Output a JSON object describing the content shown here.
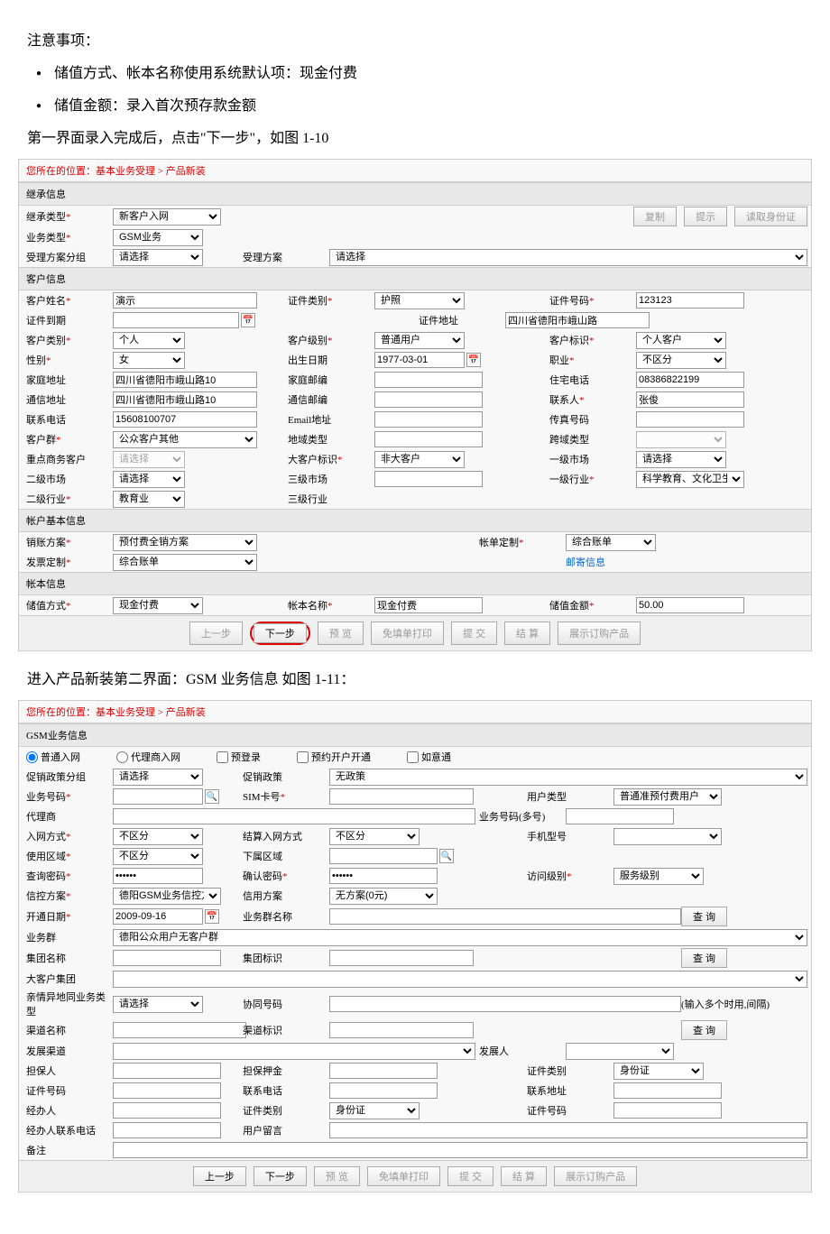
{
  "doc": {
    "t1": "注意事项：",
    "b1": "储值方式、帐本名称使用系统默认项：现金付费",
    "b2": "储值金额：录入首次预存款金额",
    "t2": "第一界面录入完成后，点击\"下一步\"，如图 1-10",
    "t3": "进入产品新装第二界面：GSM 业务信息 如图 1-11："
  },
  "crumb": "您所在的位置：基本业务受理 > 产品新装",
  "f1": {
    "sec1": "继承信息",
    "l_jclx": "继承类型",
    "v_jclx": "新客户入网",
    "btn_fz": "复制",
    "btn_ts": "提示",
    "btn_sfz": "读取身份证",
    "l_ywlx": "业务类型",
    "v_ywlx": "GSM业务",
    "l_slfafz": "受理方案分组",
    "v_slfafz": "请选择",
    "l_slfa": "受理方案",
    "v_slfa": "请选择",
    "sec2": "客户信息",
    "l_khxm": "客户姓名",
    "v_khxm": "演示",
    "l_zjlb": "证件类别",
    "v_zjlb": "护照",
    "l_zjhm": "证件号码",
    "v_zjhm": "123123",
    "l_zjdq": "证件到期",
    "l_zjdz": "证件地址",
    "v_zjdz": "四川省德阳市峨山路",
    "l_khlb": "客户类别",
    "v_khlb": "个人",
    "l_khjb": "客户级别",
    "v_khjb": "普通用户",
    "l_khbs": "客户标识",
    "v_khbs": "个人客户",
    "l_xb": "性别",
    "v_xb": "女",
    "l_csrq": "出生日期",
    "v_csrq": "1977-03-01",
    "l_zy": "职业",
    "v_zy": "不区分",
    "l_jtdz": "家庭地址",
    "v_jtdz": "四川省德阳市峨山路10",
    "l_jtyb": "家庭邮编",
    "l_zzdh": "住宅电话",
    "v_zzdh": "08386822199",
    "l_txdz": "通信地址",
    "v_txdz": "四川省德阳市峨山路10",
    "l_txyb": "通信邮编",
    "l_lxr": "联系人",
    "v_lxr": "张俊",
    "l_lxdh": "联系电话",
    "v_lxdh": "15608100707",
    "l_email": "Email地址",
    "l_czhm": "传真号码",
    "l_khq": "客户群",
    "v_khq": "公众客户其他",
    "l_dylx": "地域类型",
    "l_kylx": "跨域类型",
    "l_zdskh": "重点商务客户",
    "v_zdskh": "请选择",
    "l_dkhbs": "大客户标识",
    "v_dkhbs": "非大客户",
    "l_yjsc": "一级市场",
    "v_yjsc": "请选择",
    "l_ejsc": "二级市场",
    "v_ejsc": "请选择",
    "l_sjsc": "三级市场",
    "l_yjhy": "一级行业",
    "v_yjhy": "科学教育、文化卫生",
    "l_ejhy": "二级行业",
    "v_ejhy": "教育业",
    "l_sjhy": "三级行业",
    "sec3": "帐户基本信息",
    "l_xzfa": "销账方案",
    "v_xzfa": "预付费全销方案",
    "l_zddz": "帐单定制",
    "v_zddz": "综合账单",
    "l_fpdz": "发票定制",
    "v_fpdz": "综合账单",
    "l_yjxx": "邮寄信息",
    "sec4": "帐本信息",
    "l_czfs": "储值方式",
    "v_czfs": "现金付费",
    "l_zbmc": "帐本名称",
    "v_zbmc": "现金付费",
    "l_czje": "储值金额",
    "v_czje": "50.00",
    "btn_prev": "上一步",
    "btn_next": "下一步",
    "btn_yl": "预 览",
    "btn_mddy": "免填单打印",
    "btn_tj": "提 交",
    "btn_js": "结 算",
    "btn_zsdg": "展示订购产品"
  },
  "f2": {
    "sec1": "GSM业务信息",
    "r_ptrw": "普通入网",
    "r_dlrw": "代理商入网",
    "r_ydl": "预登录",
    "r_ykhkt": "预约开户开通",
    "r_ryt": "如意通",
    "l_cxzcfz": "促销政策分组",
    "v_cxzcfz": "请选择",
    "l_cxzc": "促销政策",
    "v_cxzc": "无政策",
    "l_ywhm": "业务号码",
    "l_simkh": "SIM卡号",
    "l_yhlx": "用户类型",
    "v_yhlx": "普通准预付费用户",
    "l_dls": "代理商",
    "l_ywhmdh": "业务号码(多号)",
    "l_rwfs": "入网方式",
    "v_rwfs": "不区分",
    "l_jsrwfs": "结算入网方式",
    "v_jsrwfs": "不区分",
    "l_sjxh": "手机型号",
    "l_syqy": "使用区域",
    "v_syqy": "不区分",
    "l_xsqy": "下属区域",
    "l_cxmm": "查询密码",
    "l_qrmm": "确认密码",
    "l_fwjb": "访问级别",
    "v_fwjb": "服务级别",
    "l_xkfa": "信控方案",
    "v_xkfa": "德阳GSM业务信控方案",
    "l_xyfa": "信用方案",
    "v_xyfa": "无方案(0元)",
    "l_ktrq": "开通日期",
    "v_ktrq": "2009-09-16",
    "l_ywqmc": "业务群名称",
    "btn_cx": "查 询",
    "l_ywq": "业务群",
    "v_ywq": "德阳公众用户无客户群",
    "l_jtmc": "集团名称",
    "l_jtbz": "集团标识",
    "l_dkhjt": "大客户集团",
    "l_qqydywlx": "亲情异地同业务类型",
    "v_qqydywlx": "请选择",
    "l_xthm": "协同号码",
    "t_xthm": "(输入多个时用,间隔)",
    "l_qdmc": "渠道名称",
    "l_qdbz": "渠道标识",
    "l_fzqd": "发展渠道",
    "l_fzr": "发展人",
    "l_dbr": "担保人",
    "l_dbyj": "担保押金",
    "l_zjlb": "证件类别",
    "v_zjlb": "身份证",
    "l_zjhm": "证件号码",
    "l_lxdh": "联系电话",
    "l_lxdz": "联系地址",
    "l_jbr": "经办人",
    "l_jbrlxdh": "经办人联系电话",
    "l_yhly": "用户留言",
    "l_bz": "备注"
  }
}
